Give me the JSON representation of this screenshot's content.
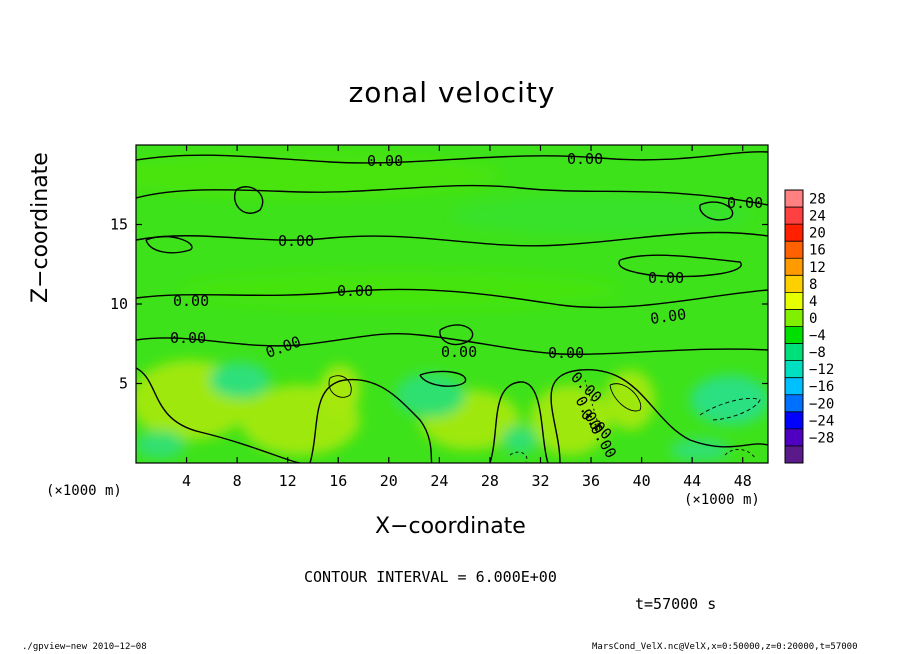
{
  "chart_data": {
    "type": "heatmap",
    "title": "zonal velocity",
    "xlabel": "X−coordinate",
    "ylabel": "Z−coordinate",
    "x_unit_label": "(×1000 m)",
    "y_unit_label": "(×1000 m)",
    "x_ticks": [
      4,
      8,
      12,
      16,
      20,
      24,
      28,
      32,
      36,
      40,
      44,
      48
    ],
    "y_ticks": [
      5,
      10,
      15
    ],
    "xlim": [
      0,
      50
    ],
    "ylim": [
      0,
      20
    ],
    "colorbar": {
      "levels": [
        28,
        24,
        20,
        16,
        12,
        8,
        4,
        0,
        -4,
        -8,
        -12,
        -16,
        -20,
        -24,
        -28
      ],
      "level_labels": [
        "28",
        "24",
        "20",
        "16",
        "12",
        "8",
        "4",
        "0",
        "−04",
        "−8",
        "−12",
        "−16",
        "−20",
        "−24",
        "−28"
      ],
      "colors": [
        "#ff8080",
        "#ff4040",
        "#ff2000",
        "#ff6000",
        "#ff9a00",
        "#ffd000",
        "#e6ff00",
        "#80f000",
        "#00e000",
        "#00e07a",
        "#00e0c0",
        "#00c0ff",
        "#0070ff",
        "#0000ff",
        "#5000c0",
        "#5a1a8a"
      ]
    },
    "contour_labels": [
      "0.00",
      "0.00",
      "0.00",
      "0.00",
      "0.00",
      "0.00",
      "0.00",
      "0.00",
      "0.00",
      "0.00",
      "0.00",
      "0.00",
      "0.00",
      "0.00",
      "0.00",
      "0.00"
    ],
    "contour_interval": "CONTOUR INTERVAL = 6.000E+00",
    "time": "t=57000 s",
    "footer_left": "./gpview−new  2010−12−08",
    "footer_right": "MarsCond_VelX.nc@VelX,x=0:50000,z=0:20000,t=57000",
    "grid": false,
    "legend": "right colorbar"
  }
}
